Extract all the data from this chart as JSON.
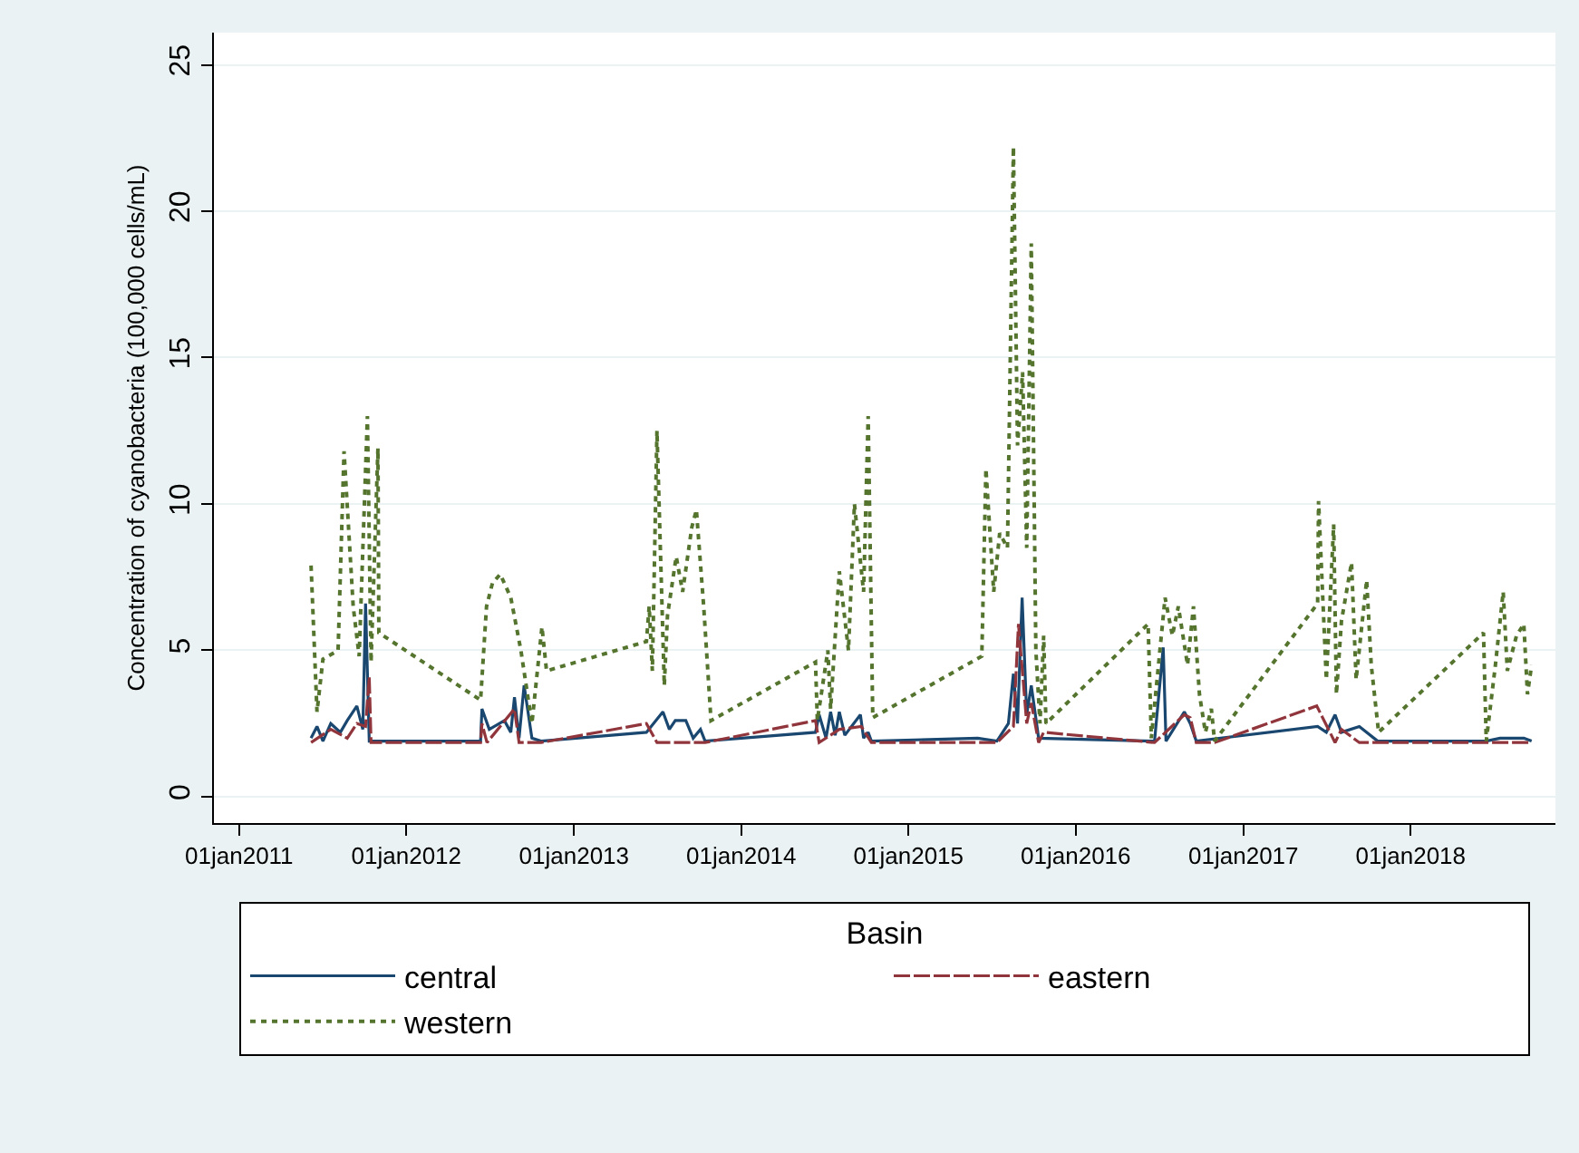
{
  "chart_data": {
    "type": "line",
    "ylabel": "Concentration of cyanobacteria (100,000 cells/mL)",
    "legend_title": "Basin",
    "xlim": [
      "2010-11-07",
      "2018-11-13"
    ],
    "xticks": [
      {
        "value": "2011-01-01",
        "label": "01jan2011"
      },
      {
        "value": "2012-01-01",
        "label": "01jan2012"
      },
      {
        "value": "2013-01-01",
        "label": "01jan2013"
      },
      {
        "value": "2014-01-01",
        "label": "01jan2014"
      },
      {
        "value": "2015-01-01",
        "label": "01jan2015"
      },
      {
        "value": "2016-01-01",
        "label": "01jan2016"
      },
      {
        "value": "2017-01-01",
        "label": "01jan2017"
      },
      {
        "value": "2018-01-01",
        "label": "01jan2018"
      }
    ],
    "ylim": [
      -0.9,
      26.1
    ],
    "yticks": [
      0,
      5,
      10,
      15,
      20,
      25
    ],
    "grid": "y",
    "legend": "bottom",
    "marker": "none",
    "series": [
      {
        "name": "central",
        "color": "#1a476f",
        "line_style": "solid",
        "x": [
          "2011-06-07",
          "2011-06-20",
          "2011-07-03",
          "2011-07-20",
          "2011-08-10",
          "2011-08-25",
          "2011-09-15",
          "2011-09-28",
          "2011-10-04",
          "2011-10-12",
          "2012-06-11",
          "2012-06-14",
          "2012-06-30",
          "2012-08-02",
          "2012-08-16",
          "2012-08-24",
          "2012-09-03",
          "2012-09-14",
          "2012-10-01",
          "2012-10-21",
          "2013-06-08",
          "2013-07-14",
          "2013-07-28",
          "2013-08-10",
          "2013-09-02",
          "2013-09-18",
          "2013-10-04",
          "2013-10-14",
          "2014-06-12",
          "2014-06-20",
          "2014-07-05",
          "2014-07-15",
          "2014-07-25",
          "2014-08-03",
          "2014-08-15",
          "2014-09-18",
          "2014-09-25",
          "2014-10-05",
          "2014-10-12",
          "2015-06-01",
          "2015-07-13",
          "2015-08-07",
          "2015-08-18",
          "2015-08-27",
          "2015-09-06",
          "2015-09-16",
          "2015-09-26",
          "2015-10-12",
          "2016-06-21",
          "2016-07-10",
          "2016-07-16",
          "2016-08-25",
          "2016-09-07",
          "2016-09-20",
          "2017-06-12",
          "2017-07-01",
          "2017-07-20",
          "2017-08-03",
          "2017-09-11",
          "2017-10-21",
          "2018-06-15",
          "2018-07-15",
          "2018-09-05",
          "2018-09-22"
        ],
        "values": [
          2.0,
          2.4,
          1.9,
          2.5,
          2.2,
          2.6,
          3.1,
          2.3,
          6.6,
          1.9,
          1.9,
          3.0,
          2.3,
          2.6,
          2.2,
          3.4,
          2.0,
          3.8,
          2.0,
          1.9,
          2.2,
          2.9,
          2.3,
          2.6,
          2.6,
          2.0,
          2.3,
          1.9,
          2.2,
          2.8,
          2.0,
          2.9,
          2.1,
          2.9,
          2.1,
          2.8,
          2.0,
          2.2,
          1.9,
          2.0,
          1.9,
          2.5,
          4.2,
          2.5,
          6.8,
          2.8,
          3.8,
          2.0,
          1.9,
          5.1,
          1.9,
          2.9,
          2.5,
          1.9,
          2.4,
          2.2,
          2.8,
          2.2,
          2.4,
          1.9,
          1.9,
          2.0,
          2.0,
          1.9
        ]
      },
      {
        "name": "eastern",
        "color": "#90353b",
        "line_style": "dashed",
        "x": [
          "2011-06-07",
          "2011-07-20",
          "2011-08-25",
          "2011-09-15",
          "2011-10-04",
          "2011-10-12",
          "2011-10-16",
          "2012-06-11",
          "2012-06-14",
          "2012-06-25",
          "2012-08-24",
          "2012-09-03",
          "2012-10-21",
          "2013-06-08",
          "2013-07-01",
          "2013-10-14",
          "2014-06-12",
          "2014-06-20",
          "2014-08-03",
          "2014-09-20",
          "2014-10-12",
          "2015-07-13",
          "2015-08-18",
          "2015-08-29",
          "2015-09-16",
          "2015-09-26",
          "2015-10-12",
          "2015-10-23",
          "2016-06-21",
          "2016-08-25",
          "2016-09-07",
          "2016-09-20",
          "2016-10-30",
          "2017-06-10",
          "2017-07-20",
          "2017-08-03",
          "2017-09-11",
          "2018-09-22"
        ],
        "values": [
          1.85,
          2.3,
          2.0,
          2.5,
          2.4,
          4.1,
          1.85,
          1.85,
          2.5,
          1.85,
          3.0,
          1.85,
          1.85,
          2.5,
          1.85,
          1.85,
          2.6,
          1.85,
          2.3,
          2.4,
          1.85,
          1.85,
          2.4,
          5.9,
          2.5,
          3.2,
          1.85,
          2.2,
          1.85,
          2.8,
          2.7,
          1.85,
          1.85,
          3.1,
          1.85,
          2.3,
          1.85,
          1.85
        ]
      },
      {
        "name": "western",
        "color": "#55752f",
        "line_style": "dotted",
        "x": [
          "2011-06-07",
          "2011-06-20",
          "2011-07-03",
          "2011-08-05",
          "2011-08-18",
          "2011-09-07",
          "2011-09-20",
          "2011-10-08",
          "2011-10-16",
          "2011-10-31",
          "2011-11-02",
          "2012-06-11",
          "2012-06-24",
          "2012-07-07",
          "2012-07-24",
          "2012-08-16",
          "2012-09-07",
          "2012-10-01",
          "2012-10-23",
          "2012-11-02",
          "2013-06-08",
          "2013-06-14",
          "2013-06-21",
          "2013-07-01",
          "2013-07-17",
          "2013-07-24",
          "2013-08-12",
          "2013-08-26",
          "2013-09-15",
          "2013-09-25",
          "2013-10-11",
          "2013-10-27",
          "2014-06-12",
          "2014-06-16",
          "2014-07-09",
          "2014-07-15",
          "2014-08-03",
          "2014-08-23",
          "2014-09-05",
          "2014-09-25",
          "2014-10-05",
          "2014-10-15",
          "2015-06-10",
          "2015-06-19",
          "2015-07-06",
          "2015-07-19",
          "2015-08-05",
          "2015-08-18",
          "2015-08-27",
          "2015-09-07",
          "2015-09-16",
          "2015-09-26",
          "2015-10-06",
          "2015-10-15",
          "2015-10-23",
          "2015-10-28",
          "2016-06-07",
          "2016-06-14",
          "2016-07-14",
          "2016-07-30",
          "2016-08-12",
          "2016-09-01",
          "2016-09-14",
          "2016-09-27",
          "2016-10-10",
          "2016-10-23",
          "2016-10-30",
          "2017-06-12",
          "2017-06-14",
          "2017-07-01",
          "2017-07-17",
          "2017-07-23",
          "2017-08-03",
          "2017-08-25",
          "2017-09-04",
          "2017-09-27",
          "2017-10-07",
          "2017-10-23",
          "2018-06-09",
          "2018-06-15",
          "2018-07-05",
          "2018-07-22",
          "2018-07-31",
          "2018-08-20",
          "2018-09-05",
          "2018-09-13",
          "2018-09-22"
        ],
        "values": [
          7.9,
          2.9,
          4.7,
          5.0,
          11.8,
          6.5,
          4.8,
          13.0,
          4.6,
          11.9,
          5.6,
          3.3,
          6.5,
          7.3,
          7.6,
          6.8,
          5.0,
          2.5,
          5.8,
          4.3,
          5.3,
          6.5,
          4.3,
          12.5,
          3.8,
          6.2,
          8.2,
          7.0,
          9.2,
          9.8,
          6.5,
          2.6,
          4.6,
          2.6,
          5.0,
          3.0,
          7.7,
          5.0,
          10.0,
          7.0,
          13.0,
          2.7,
          4.8,
          11.2,
          7.0,
          9.0,
          8.5,
          22.2,
          12.0,
          14.5,
          8.5,
          18.9,
          5.0,
          2.5,
          5.5,
          2.5,
          5.9,
          2.0,
          6.8,
          5.5,
          6.5,
          4.5,
          6.5,
          3.5,
          2.2,
          3.0,
          1.9,
          6.6,
          10.1,
          4.0,
          9.3,
          3.5,
          6.0,
          8.0,
          4.0,
          7.4,
          4.5,
          2.2,
          5.6,
          1.9,
          4.5,
          7.0,
          4.3,
          5.5,
          5.9,
          3.5,
          4.5
        ]
      }
    ]
  }
}
